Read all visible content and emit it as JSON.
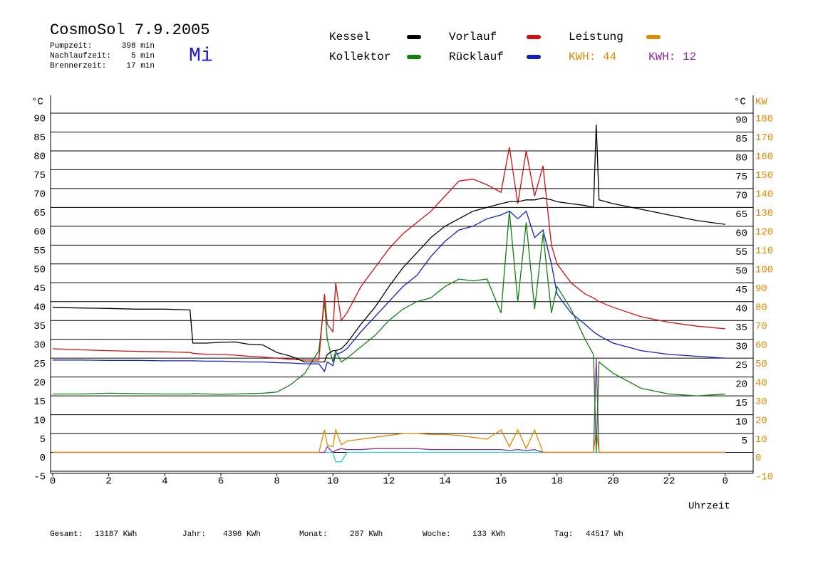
{
  "chart_data": {
    "type": "line",
    "title": "CosmoSol 7.9.2005",
    "weekday": "Mi",
    "stats": [
      {
        "label": "Pumpzeit:",
        "value": "398 min"
      },
      {
        "label": "Nachlaufzeit:",
        "value": "5 min"
      },
      {
        "label": "Brennerzeit:",
        "value": "17 min"
      }
    ],
    "y_label": "°C",
    "y2_label_temp": "°C",
    "y2_label": "KW",
    "x_label": "Uhrzeit",
    "kwh_labels": [
      {
        "label": "KWH: 44",
        "color": "#e08a00"
      },
      {
        "label": "KWH: 12",
        "color": "#8b2d9c"
      }
    ],
    "footer": [
      {
        "label": "Gesamt:",
        "value": "13187 KWh"
      },
      {
        "label": "Jahr:",
        "value": "4396 KWh"
      },
      {
        "label": "Monat:",
        "value": "287 KWh"
      },
      {
        "label": "Woche:",
        "value": "133 KWh"
      },
      {
        "label": "Tag:",
        "value": "44517 Wh"
      }
    ],
    "x": [
      0,
      1,
      2,
      3,
      4,
      4.9,
      5,
      5.5,
      6,
      6.5,
      7,
      7.5,
      8,
      8.5,
      9,
      9.5,
      9.7,
      9.8,
      10,
      10.1,
      10.3,
      10.5,
      11,
      11.5,
      12,
      12.5,
      13,
      13.5,
      14,
      14.5,
      15,
      15.5,
      16,
      16.3,
      16.6,
      16.9,
      17.2,
      17.5,
      17.8,
      18,
      18.5,
      19,
      19.3,
      19.4,
      19.5,
      20,
      21,
      22,
      23,
      24
    ],
    "xlim": [
      0,
      25
    ],
    "xticks": [
      0,
      2,
      4,
      6,
      8,
      10,
      12,
      14,
      16,
      18,
      20,
      22,
      {
        "value": 24,
        "label": "0"
      }
    ],
    "ylim": [
      -5,
      90
    ],
    "yticks": [
      -5,
      0,
      5,
      10,
      15,
      20,
      25,
      30,
      35,
      40,
      45,
      50,
      55,
      60,
      65,
      70,
      75,
      80,
      85,
      90
    ],
    "yticks_right": [
      5,
      10,
      15,
      20,
      25,
      30,
      35,
      40,
      45,
      50,
      55,
      60,
      65,
      70,
      75,
      80,
      85,
      90
    ],
    "y2lim": [
      -10,
      180
    ],
    "y2ticks": [
      -10,
      0,
      10,
      20,
      30,
      40,
      50,
      60,
      70,
      80,
      90,
      100,
      110,
      120,
      130,
      140,
      150,
      160,
      170,
      180
    ],
    "grid": true,
    "series": [
      {
        "name": "Kessel",
        "color": "#000000",
        "values": [
          38.5,
          38.3,
          38.2,
          38,
          38,
          37.8,
          29,
          29,
          29.2,
          29.3,
          28.7,
          28.5,
          26.5,
          25.5,
          24,
          24,
          24,
          26,
          27,
          27,
          27.5,
          29,
          34,
          38.5,
          44,
          49,
          53,
          57,
          60,
          62,
          64,
          65,
          66,
          66.5,
          66.5,
          67,
          67,
          67.5,
          67,
          66.5,
          66,
          65.5,
          65,
          87,
          67,
          66,
          64.5,
          63,
          61.5,
          60.5
        ]
      },
      {
        "name": "Vorlauf",
        "color": "#d01010",
        "values": [
          27.5,
          27.2,
          27,
          26.8,
          26.7,
          26.5,
          26.3,
          26,
          26,
          25.8,
          25.5,
          25.3,
          25,
          24.7,
          24.5,
          24.5,
          42,
          34,
          32,
          45,
          35,
          37,
          44,
          49,
          54,
          58,
          61,
          64,
          68,
          72,
          72.5,
          71,
          69,
          81,
          66,
          80,
          68,
          76,
          55,
          50,
          45,
          42,
          41,
          40.5,
          40,
          38.5,
          36,
          34.5,
          33.5,
          32.8
        ]
      },
      {
        "name": "Leistung",
        "color": "#e08a00",
        "axis": "y2",
        "values": [
          0,
          0,
          0,
          0,
          0,
          0,
          0,
          0,
          0,
          0,
          0,
          0,
          0,
          0,
          0,
          0,
          12,
          4,
          3,
          12,
          4,
          6,
          7,
          8,
          9,
          10,
          10,
          9.5,
          9.5,
          9,
          8,
          7,
          12,
          3,
          12,
          2,
          12,
          0,
          0,
          0,
          0,
          0,
          0,
          12,
          0,
          0,
          0,
          0,
          0,
          0
        ]
      },
      {
        "name": "Kollektor",
        "color": "#108010",
        "values": [
          15.5,
          15.5,
          15.7,
          15.6,
          15.5,
          15.5,
          15.6,
          15.5,
          15.4,
          15.5,
          15.6,
          15.7,
          16,
          18,
          21,
          27,
          40,
          30,
          24,
          27,
          24,
          25,
          28,
          31,
          35,
          38,
          40,
          41,
          44,
          46,
          45.5,
          46,
          37,
          64,
          40,
          61,
          38,
          58,
          37,
          44,
          38,
          30,
          26,
          0,
          24,
          21,
          17,
          15.5,
          15,
          15.5
        ]
      },
      {
        "name": "Rücklauf",
        "color": "#1020c0",
        "values": [
          24.5,
          24.5,
          24.4,
          24.4,
          24.3,
          24.3,
          24.3,
          24.2,
          24.2,
          24.1,
          24,
          24,
          23.8,
          23.7,
          23.5,
          23.5,
          21.5,
          24,
          23,
          26,
          26.5,
          27.5,
          32,
          36,
          40,
          44,
          47,
          52,
          56,
          59,
          60,
          62,
          63,
          64,
          62,
          64,
          57,
          59,
          50,
          42,
          37,
          34,
          32,
          31.5,
          31,
          29,
          27,
          26,
          25.5,
          25
        ]
      },
      {
        "color": "#8b2d9c",
        "axis": "y2",
        "values": [
          0,
          0,
          0,
          0,
          0,
          0,
          0,
          0,
          0,
          0,
          0,
          0,
          0,
          0,
          0,
          0,
          0,
          3,
          0,
          1,
          2,
          1.5,
          1.5,
          2,
          2,
          2,
          2,
          1.5,
          1.5,
          1.5,
          1.5,
          1.5,
          1.5,
          1,
          1.5,
          1,
          1.5,
          0,
          0,
          0,
          0,
          0,
          0,
          50,
          0,
          0,
          0,
          0,
          0,
          0
        ]
      },
      {
        "color": "#20d0d0",
        "values": [
          0,
          0,
          0,
          0,
          0,
          0,
          0,
          0,
          0,
          0,
          0,
          0,
          0,
          0,
          0,
          0,
          0,
          0,
          0,
          -2.5,
          -2.5,
          0,
          0,
          0,
          0,
          0,
          0,
          0,
          0,
          0,
          0,
          0,
          0,
          0,
          0,
          0,
          0,
          0,
          0,
          0,
          0,
          0,
          0,
          0,
          0,
          0,
          0,
          0,
          0,
          0
        ]
      }
    ]
  }
}
